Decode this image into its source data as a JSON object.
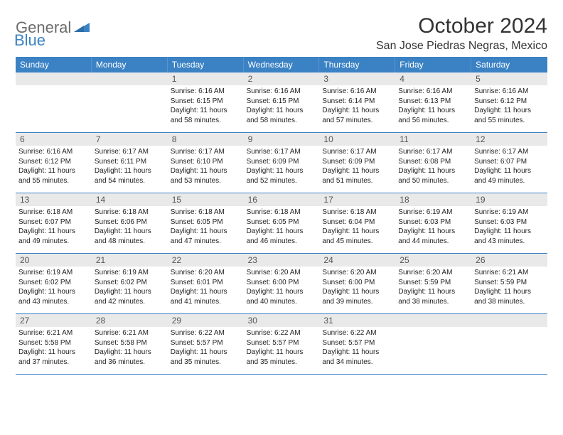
{
  "logo": {
    "text1": "General",
    "text2": "Blue"
  },
  "month_title": "October 2024",
  "location": "San Jose Piedras Negras, Mexico",
  "colors": {
    "accent": "#3b82c4",
    "header_bg": "#3b82c4",
    "header_fg": "#ffffff",
    "daynum_bg": "#e9e9e9",
    "daynum_fg": "#555555",
    "text": "#222222",
    "logo_gray": "#6b6b6b"
  },
  "days_of_week": [
    "Sunday",
    "Monday",
    "Tuesday",
    "Wednesday",
    "Thursday",
    "Friday",
    "Saturday"
  ],
  "weeks": [
    [
      {
        "n": "",
        "sunrise": "",
        "sunset": "",
        "daylight": ""
      },
      {
        "n": "",
        "sunrise": "",
        "sunset": "",
        "daylight": ""
      },
      {
        "n": "1",
        "sunrise": "Sunrise: 6:16 AM",
        "sunset": "Sunset: 6:15 PM",
        "daylight": "Daylight: 11 hours and 58 minutes."
      },
      {
        "n": "2",
        "sunrise": "Sunrise: 6:16 AM",
        "sunset": "Sunset: 6:15 PM",
        "daylight": "Daylight: 11 hours and 58 minutes."
      },
      {
        "n": "3",
        "sunrise": "Sunrise: 6:16 AM",
        "sunset": "Sunset: 6:14 PM",
        "daylight": "Daylight: 11 hours and 57 minutes."
      },
      {
        "n": "4",
        "sunrise": "Sunrise: 6:16 AM",
        "sunset": "Sunset: 6:13 PM",
        "daylight": "Daylight: 11 hours and 56 minutes."
      },
      {
        "n": "5",
        "sunrise": "Sunrise: 6:16 AM",
        "sunset": "Sunset: 6:12 PM",
        "daylight": "Daylight: 11 hours and 55 minutes."
      }
    ],
    [
      {
        "n": "6",
        "sunrise": "Sunrise: 6:16 AM",
        "sunset": "Sunset: 6:12 PM",
        "daylight": "Daylight: 11 hours and 55 minutes."
      },
      {
        "n": "7",
        "sunrise": "Sunrise: 6:17 AM",
        "sunset": "Sunset: 6:11 PM",
        "daylight": "Daylight: 11 hours and 54 minutes."
      },
      {
        "n": "8",
        "sunrise": "Sunrise: 6:17 AM",
        "sunset": "Sunset: 6:10 PM",
        "daylight": "Daylight: 11 hours and 53 minutes."
      },
      {
        "n": "9",
        "sunrise": "Sunrise: 6:17 AM",
        "sunset": "Sunset: 6:09 PM",
        "daylight": "Daylight: 11 hours and 52 minutes."
      },
      {
        "n": "10",
        "sunrise": "Sunrise: 6:17 AM",
        "sunset": "Sunset: 6:09 PM",
        "daylight": "Daylight: 11 hours and 51 minutes."
      },
      {
        "n": "11",
        "sunrise": "Sunrise: 6:17 AM",
        "sunset": "Sunset: 6:08 PM",
        "daylight": "Daylight: 11 hours and 50 minutes."
      },
      {
        "n": "12",
        "sunrise": "Sunrise: 6:17 AM",
        "sunset": "Sunset: 6:07 PM",
        "daylight": "Daylight: 11 hours and 49 minutes."
      }
    ],
    [
      {
        "n": "13",
        "sunrise": "Sunrise: 6:18 AM",
        "sunset": "Sunset: 6:07 PM",
        "daylight": "Daylight: 11 hours and 49 minutes."
      },
      {
        "n": "14",
        "sunrise": "Sunrise: 6:18 AM",
        "sunset": "Sunset: 6:06 PM",
        "daylight": "Daylight: 11 hours and 48 minutes."
      },
      {
        "n": "15",
        "sunrise": "Sunrise: 6:18 AM",
        "sunset": "Sunset: 6:05 PM",
        "daylight": "Daylight: 11 hours and 47 minutes."
      },
      {
        "n": "16",
        "sunrise": "Sunrise: 6:18 AM",
        "sunset": "Sunset: 6:05 PM",
        "daylight": "Daylight: 11 hours and 46 minutes."
      },
      {
        "n": "17",
        "sunrise": "Sunrise: 6:18 AM",
        "sunset": "Sunset: 6:04 PM",
        "daylight": "Daylight: 11 hours and 45 minutes."
      },
      {
        "n": "18",
        "sunrise": "Sunrise: 6:19 AM",
        "sunset": "Sunset: 6:03 PM",
        "daylight": "Daylight: 11 hours and 44 minutes."
      },
      {
        "n": "19",
        "sunrise": "Sunrise: 6:19 AM",
        "sunset": "Sunset: 6:03 PM",
        "daylight": "Daylight: 11 hours and 43 minutes."
      }
    ],
    [
      {
        "n": "20",
        "sunrise": "Sunrise: 6:19 AM",
        "sunset": "Sunset: 6:02 PM",
        "daylight": "Daylight: 11 hours and 43 minutes."
      },
      {
        "n": "21",
        "sunrise": "Sunrise: 6:19 AM",
        "sunset": "Sunset: 6:02 PM",
        "daylight": "Daylight: 11 hours and 42 minutes."
      },
      {
        "n": "22",
        "sunrise": "Sunrise: 6:20 AM",
        "sunset": "Sunset: 6:01 PM",
        "daylight": "Daylight: 11 hours and 41 minutes."
      },
      {
        "n": "23",
        "sunrise": "Sunrise: 6:20 AM",
        "sunset": "Sunset: 6:00 PM",
        "daylight": "Daylight: 11 hours and 40 minutes."
      },
      {
        "n": "24",
        "sunrise": "Sunrise: 6:20 AM",
        "sunset": "Sunset: 6:00 PM",
        "daylight": "Daylight: 11 hours and 39 minutes."
      },
      {
        "n": "25",
        "sunrise": "Sunrise: 6:20 AM",
        "sunset": "Sunset: 5:59 PM",
        "daylight": "Daylight: 11 hours and 38 minutes."
      },
      {
        "n": "26",
        "sunrise": "Sunrise: 6:21 AM",
        "sunset": "Sunset: 5:59 PM",
        "daylight": "Daylight: 11 hours and 38 minutes."
      }
    ],
    [
      {
        "n": "27",
        "sunrise": "Sunrise: 6:21 AM",
        "sunset": "Sunset: 5:58 PM",
        "daylight": "Daylight: 11 hours and 37 minutes."
      },
      {
        "n": "28",
        "sunrise": "Sunrise: 6:21 AM",
        "sunset": "Sunset: 5:58 PM",
        "daylight": "Daylight: 11 hours and 36 minutes."
      },
      {
        "n": "29",
        "sunrise": "Sunrise: 6:22 AM",
        "sunset": "Sunset: 5:57 PM",
        "daylight": "Daylight: 11 hours and 35 minutes."
      },
      {
        "n": "30",
        "sunrise": "Sunrise: 6:22 AM",
        "sunset": "Sunset: 5:57 PM",
        "daylight": "Daylight: 11 hours and 35 minutes."
      },
      {
        "n": "31",
        "sunrise": "Sunrise: 6:22 AM",
        "sunset": "Sunset: 5:57 PM",
        "daylight": "Daylight: 11 hours and 34 minutes."
      },
      {
        "n": "",
        "sunrise": "",
        "sunset": "",
        "daylight": ""
      },
      {
        "n": "",
        "sunrise": "",
        "sunset": "",
        "daylight": ""
      }
    ]
  ]
}
